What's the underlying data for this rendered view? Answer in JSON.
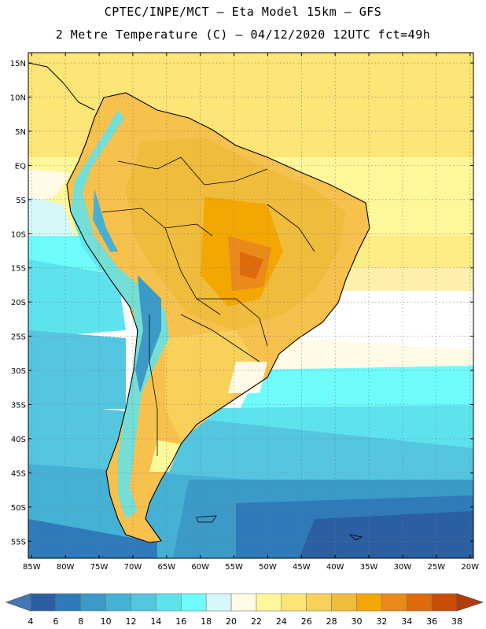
{
  "header": {
    "title": "CPTEC/INPE/MCT –  Eta Model 15km – GFS",
    "subtitle": "2 Metre Temperature (C) – 04/12/2020 12UTC fct=49h"
  },
  "map": {
    "lat_labels": [
      "15N",
      "10N",
      "5N",
      "EQ",
      "5S",
      "10S",
      "15S",
      "20S",
      "25S",
      "30S",
      "35S",
      "40S",
      "45S",
      "50S",
      "55S"
    ],
    "lon_labels": [
      "85W",
      "80W",
      "75W",
      "70W",
      "65W",
      "60W",
      "55W",
      "50W",
      "45W",
      "40W",
      "35W",
      "30W",
      "25W",
      "20W"
    ],
    "lat_values": [
      15,
      10,
      5,
      0,
      -5,
      -10,
      -15,
      -20,
      -25,
      -30,
      -35,
      -40,
      -45,
      -50,
      -55
    ],
    "lon_values": [
      -85,
      -80,
      -75,
      -70,
      -65,
      -60,
      -55,
      -50,
      -45,
      -40,
      -35,
      -30,
      -25,
      -20
    ],
    "extent": {
      "lon_min": -85.5,
      "lon_max": -19.5,
      "lat_min": -57.5,
      "lat_max": 16.5
    }
  },
  "colorbar": {
    "labels": [
      "4",
      "6",
      "8",
      "10",
      "12",
      "14",
      "16",
      "18",
      "20",
      "22",
      "24",
      "26",
      "28",
      "30",
      "32",
      "34",
      "36",
      "38"
    ],
    "colors": [
      "#2c5fa2",
      "#2f7bba",
      "#3b9ac7",
      "#45b1d5",
      "#55c6e0",
      "#5ee3ee",
      "#6ffbfb",
      "#d7f8fa",
      "#fffbe6",
      "#fff89a",
      "#fde576",
      "#f8d05a",
      "#f0bc3c",
      "#f4a603",
      "#ea8a1b",
      "#df6a0b",
      "#c94d06"
    ],
    "low_color": "#3e79b6",
    "high_color": "#b23c08"
  }
}
